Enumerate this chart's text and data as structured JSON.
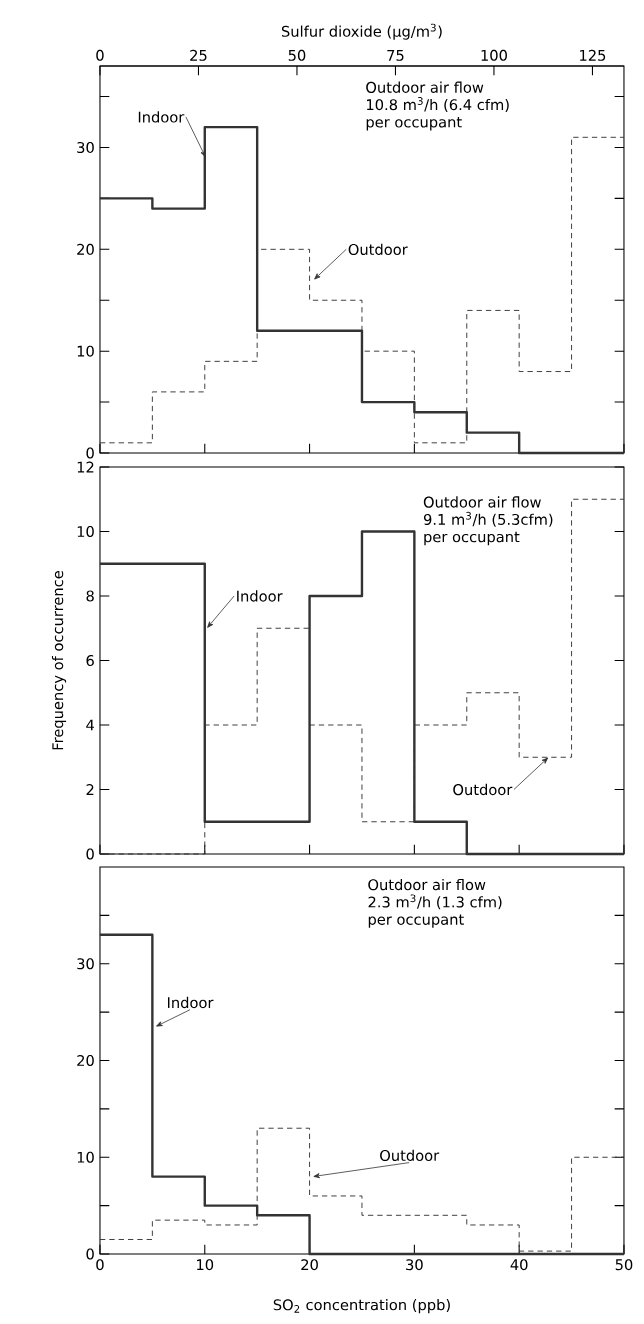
{
  "chart_data": [
    {
      "type": "histogram",
      "x2label": "Sulfur dioxide (μg/m$^{3}$)",
      "bins": [
        0,
        5,
        10,
        15,
        20,
        25,
        30,
        35,
        40,
        45,
        50
      ],
      "series": [
        {
          "name": "Indoor",
          "color": "#333333",
          "line_style": "solid",
          "values": [
            25,
            24,
            32,
            12,
            12,
            5,
            4,
            2,
            0,
            0
          ]
        },
        {
          "name": "Outdoor",
          "color": "#333333",
          "line_style": "dashed",
          "values": [
            1,
            6,
            9,
            20,
            15,
            10,
            1,
            14,
            8,
            31
          ]
        }
      ],
      "xlim": [
        0,
        50
      ],
      "xticks": [
        0,
        10,
        20,
        30,
        40,
        50
      ],
      "tick_labels": "y",
      "x2lim": [
        0,
        133
      ],
      "x2ticks": [
        0,
        25,
        50,
        75,
        100,
        125
      ],
      "ylim": [
        0,
        38
      ],
      "yticks": [
        0,
        {
          "value": 5,
          "label": null
        },
        10,
        {
          "value": 15,
          "label": null
        },
        20,
        {
          "value": 25,
          "label": null
        },
        30,
        {
          "value": 35,
          "label": null
        }
      ],
      "annotations": [
        "Outdoor air flow",
        "10.8 m$^{3}$/h (6.4 cfm)",
        "per occupant"
      ]
    },
    {
      "type": "histogram",
      "ylabel": "Frequency of occurrence",
      "bins": [
        0,
        5,
        10,
        15,
        20,
        25,
        30,
        35,
        40,
        45,
        50
      ],
      "series": [
        {
          "name": "Indoor",
          "color": "#333333",
          "line_style": "solid",
          "values": [
            9,
            9,
            1,
            1,
            8,
            10,
            1,
            0,
            0,
            0
          ]
        },
        {
          "name": "Outdoor",
          "color": "#333333",
          "line_style": "dashed",
          "values": [
            0,
            0,
            4,
            7,
            4,
            1,
            4,
            5,
            3,
            11
          ]
        }
      ],
      "xlim": [
        0,
        50
      ],
      "xticks": [
        0,
        10,
        20,
        30,
        40,
        50
      ],
      "tick_labels": "y",
      "ylim": [
        0,
        12
      ],
      "yticks": [
        0,
        2,
        4,
        6,
        8,
        10,
        12
      ],
      "annotations": [
        "Outdoor air flow",
        "9.1 m$^{3}$/h (5.3cfm)",
        "per occupant"
      ]
    },
    {
      "type": "histogram",
      "xlabel": "SO$_{2}$ concentration (ppb)",
      "bins": [
        0,
        5,
        10,
        15,
        20,
        25,
        30,
        35,
        40,
        45,
        50
      ],
      "series": [
        {
          "name": "Indoor",
          "color": "#333333",
          "line_style": "solid",
          "values": [
            33,
            8,
            5,
            4,
            0,
            0,
            0,
            0,
            0,
            0
          ]
        },
        {
          "name": "Outdoor",
          "color": "#333333",
          "line_style": "dashed",
          "values": [
            1.5,
            3.5,
            3,
            13,
            6,
            4,
            4,
            3,
            0.3,
            10
          ]
        }
      ],
      "xlim": [
        0,
        50
      ],
      "xticks": [
        0,
        10,
        20,
        30,
        40,
        50
      ],
      "ylim": [
        0,
        40
      ],
      "yticks": [
        0,
        {
          "value": 5,
          "label": null
        },
        10,
        {
          "value": 15,
          "label": null
        },
        20,
        {
          "value": 25,
          "label": null
        },
        30,
        {
          "value": 35,
          "label": null
        }
      ],
      "annotations": [
        "Outdoor air flow",
        "2.3 m$^{3}$/h (1.3 cfm)",
        "per occupant"
      ]
    }
  ]
}
